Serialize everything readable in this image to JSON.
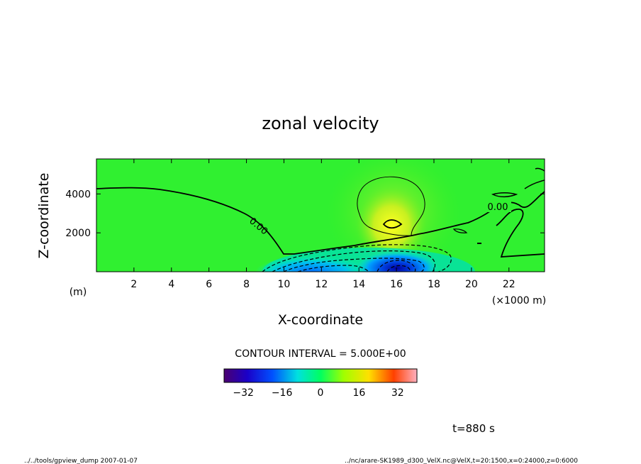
{
  "chart_data": {
    "type": "heatmap",
    "title": "zonal velocity",
    "xlabel": "X-coordinate",
    "ylabel": "Z-coordinate",
    "x_unit_label": "(×1000 m)",
    "y_unit_label": "(m)",
    "x_range": [
      0,
      23.9
    ],
    "y_range": [
      0,
      5800
    ],
    "x_ticks": [
      2,
      4,
      6,
      8,
      10,
      12,
      14,
      16,
      18,
      20,
      22
    ],
    "x_tick_labels": [
      "2",
      "4",
      "6",
      "8",
      "10",
      "12",
      "14",
      "16",
      "18",
      "20",
      "22"
    ],
    "y_ticks": [
      2000,
      4000
    ],
    "y_tick_labels": [
      "2000",
      "4000"
    ],
    "contour_interval_text": "CONTOUR INTERVAL = 5.000E+00",
    "contour_labels": [
      {
        "text": "0.00",
        "x": 8.6,
        "z": 2300
      },
      {
        "text": "0.00",
        "x": 21.4,
        "z": 3300
      }
    ],
    "colorbar": {
      "min": -40,
      "max": 40,
      "ticks": [
        -32,
        -16,
        0,
        16,
        32
      ],
      "tick_labels": [
        "−32",
        "−16",
        "0",
        "16",
        "32"
      ]
    },
    "field_features": [
      {
        "kind": "negative-core",
        "x": 16.0,
        "z": 400,
        "value": -25
      },
      {
        "kind": "negative-lobe",
        "x": 11.5,
        "z": 200,
        "value": -14
      },
      {
        "kind": "positive-bubble",
        "x": 15.8,
        "z": 2600,
        "value": 6
      }
    ]
  },
  "annotations": {
    "time": "t=880 s",
    "footer_left": "../../tools/gpview_dump  2007-01-07",
    "footer_right": "../nc/arare-SK1989_d300_VelX.nc@VelX,t=20:1500,x=0:24000,z=0:6000"
  }
}
